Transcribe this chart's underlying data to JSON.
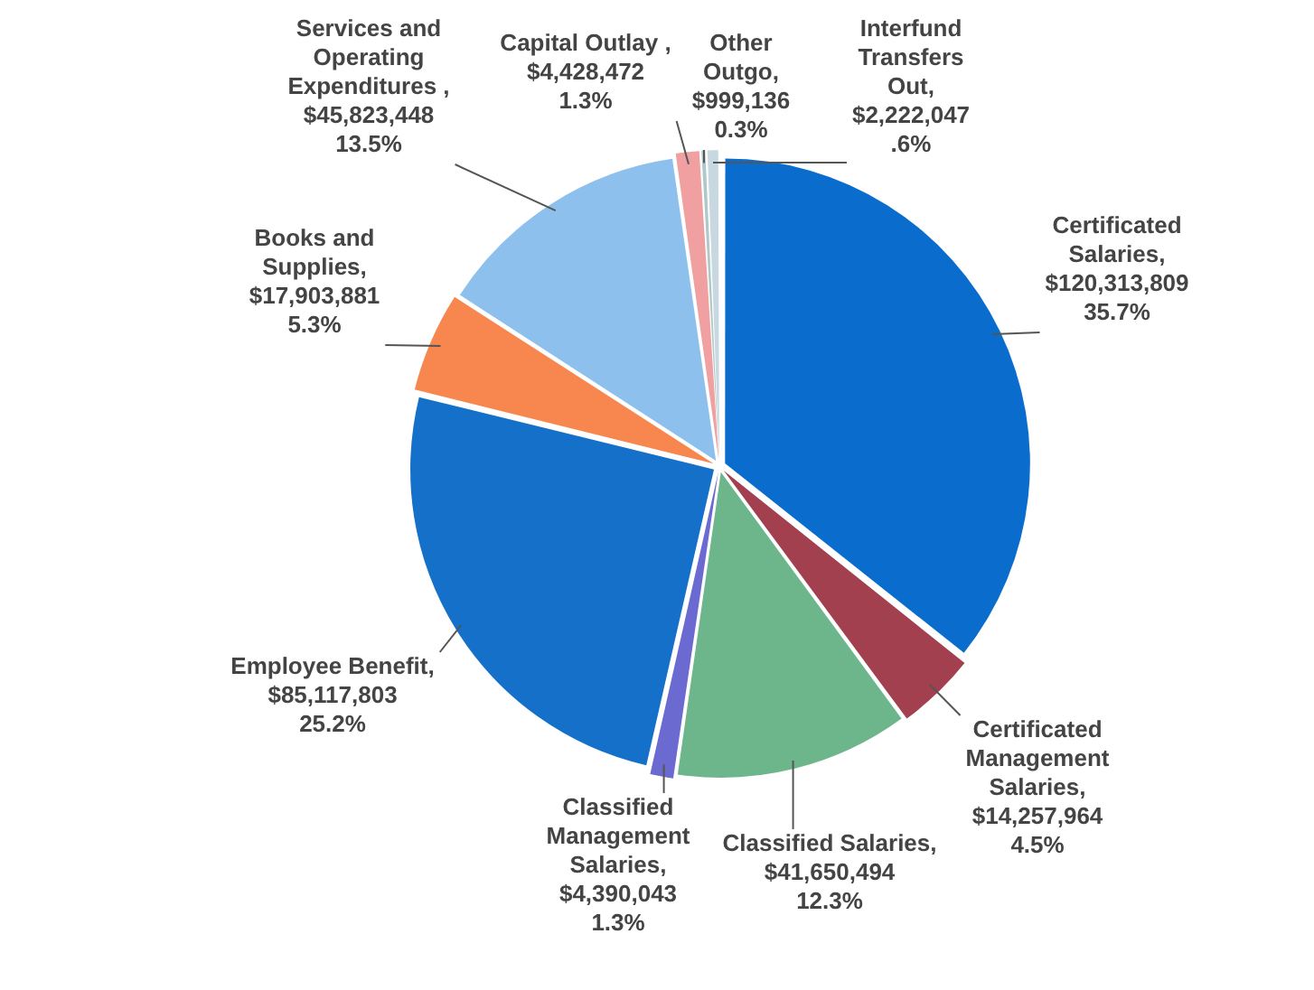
{
  "chart_data": {
    "type": "pie",
    "categories": [
      "Certificated Salaries",
      "Certificated Management Salaries",
      "Classified Salaries",
      "Classified Management Salaries",
      "Employee Benefit",
      "Books and Supplies",
      "Services and Operating Expenditures",
      "Capital Outlay",
      "Other Outgo",
      "Interfund Transfers Out"
    ],
    "values": [
      120313809,
      14257964,
      41650494,
      4390043,
      85117803,
      17903881,
      45823448,
      4428472,
      999136,
      2222047
    ],
    "colors": [
      "#0a6ccc",
      "#a3404f",
      "#6db58a",
      "#6a6ad0",
      "#1470c8",
      "#f7874f",
      "#8ec0ee",
      "#f0a0a0",
      "#b0c8c8",
      "#c8d8e0"
    ],
    "value_labels": [
      ",\n$120,313,809\n35.7%",
      ",\n$14,257,964\n4.5%",
      ",\n$41,650,494\n12.3%",
      ",\n$4,390,043\n1.3%",
      ",\n$85,117,803\n25.2%",
      ",\n$17,903,881\n5.3%",
      " ,\n$45,823,448\n13.5%",
      " ,\n$4,428,472\n1.3%",
      ",\n$999,136\n0.3%",
      ",\n$2,222,047\n.6%"
    ],
    "legend": false
  }
}
